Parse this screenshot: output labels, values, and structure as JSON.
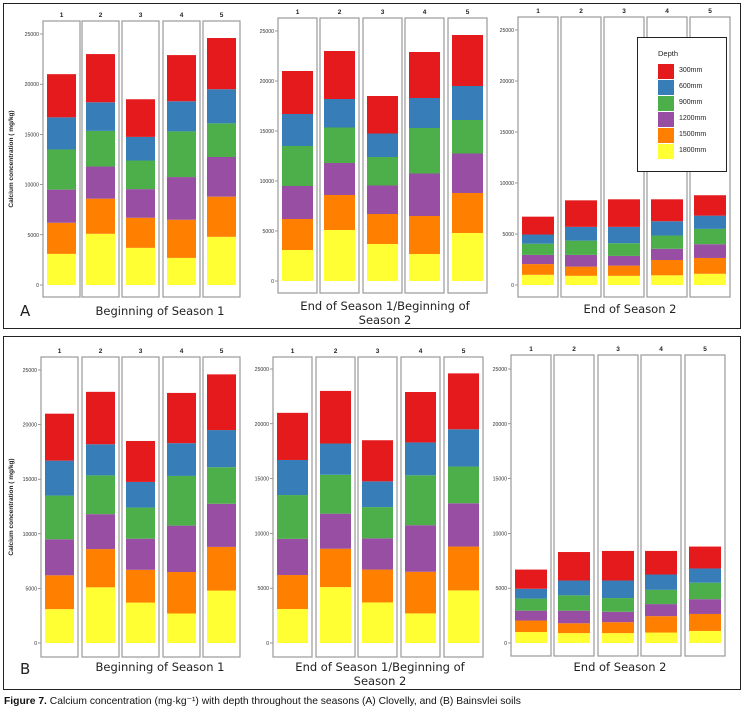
{
  "caption": {
    "prefix": "Figure 7.",
    "text": " Calcium concentration (mg·kg⁻¹) with depth throughout the seasons (A) Clovelly, and (B) Bainsvlei soils"
  },
  "legend": {
    "title": "Depth",
    "items": [
      {
        "label": "300mm",
        "color": "#e41a1c"
      },
      {
        "label": "600mm",
        "color": "#377eb8"
      },
      {
        "label": "900mm",
        "color": "#4daf4a"
      },
      {
        "label": "1200mm",
        "color": "#984ea3"
      },
      {
        "label": "1500mm",
        "color": "#ff7f00"
      },
      {
        "label": "1800mm",
        "color": "#ffff33"
      }
    ]
  },
  "figures": [
    {
      "letter": "A"
    },
    {
      "letter": "B"
    }
  ],
  "chart_data": [
    {
      "type": "bar",
      "stacked": true,
      "figure": "A",
      "soil": "Clovelly",
      "title": "Beginning of Season 1",
      "ylabel": "Calcium concentration ( mg/kg)",
      "xlabel": "",
      "ylim": [
        0,
        26000
      ],
      "yticks": [
        0,
        5000,
        10000,
        15000,
        20000,
        25000
      ],
      "categories": [
        "1",
        "2",
        "3",
        "4",
        "5"
      ],
      "series": [
        {
          "name": "1800mm",
          "values": [
            3100,
            5100,
            3700,
            2700,
            4800
          ]
        },
        {
          "name": "1500mm",
          "values": [
            3100,
            3500,
            3000,
            3800,
            4000
          ]
        },
        {
          "name": "1200mm",
          "values": [
            3300,
            3200,
            2850,
            4250,
            3950
          ]
        },
        {
          "name": "900mm",
          "values": [
            4000,
            3550,
            2850,
            4550,
            3350
          ]
        },
        {
          "name": "600mm",
          "values": [
            3200,
            2850,
            2350,
            3000,
            3400
          ]
        },
        {
          "name": "300mm",
          "values": [
            4300,
            4800,
            3750,
            4600,
            5100
          ]
        }
      ]
    },
    {
      "type": "bar",
      "stacked": true,
      "figure": "A",
      "soil": "Clovelly",
      "title": "End of Season 1/Beginning of Season 2",
      "ylabel": "",
      "xlabel": "",
      "ylim": [
        0,
        26000
      ],
      "yticks": [
        0,
        5000,
        10000,
        15000,
        20000,
        25000
      ],
      "categories": [
        "1",
        "2",
        "3",
        "4",
        "5"
      ],
      "series": [
        {
          "name": "1800mm",
          "values": [
            3100,
            5100,
            3700,
            2700,
            4800
          ]
        },
        {
          "name": "1500mm",
          "values": [
            3100,
            3500,
            3000,
            3800,
            4000
          ]
        },
        {
          "name": "1200mm",
          "values": [
            3300,
            3200,
            2850,
            4250,
            3950
          ]
        },
        {
          "name": "900mm",
          "values": [
            4000,
            3550,
            2850,
            4550,
            3350
          ]
        },
        {
          "name": "600mm",
          "values": [
            3200,
            2850,
            2350,
            3000,
            3400
          ]
        },
        {
          "name": "300mm",
          "values": [
            4300,
            4800,
            3750,
            4600,
            5100
          ]
        }
      ]
    },
    {
      "type": "bar",
      "stacked": true,
      "figure": "A",
      "soil": "Clovelly",
      "title": "End of Season 2",
      "ylabel": "",
      "xlabel": "",
      "ylim": [
        0,
        26000
      ],
      "yticks": [
        0,
        5000,
        10000,
        15000,
        20000,
        25000
      ],
      "categories": [
        "1",
        "2",
        "3",
        "4",
        "5"
      ],
      "legend_position": "top-right",
      "series": [
        {
          "name": "1800mm",
          "values": [
            1000,
            900,
            900,
            950,
            1100
          ]
        },
        {
          "name": "1500mm",
          "values": [
            1050,
            900,
            1000,
            1500,
            1550
          ]
        },
        {
          "name": "1200mm",
          "values": [
            900,
            1150,
            950,
            1100,
            1350
          ]
        },
        {
          "name": "900mm",
          "values": [
            1100,
            1400,
            1250,
            1300,
            1500
          ]
        },
        {
          "name": "600mm",
          "values": [
            900,
            1350,
            1600,
            1400,
            1300
          ]
        },
        {
          "name": "300mm",
          "values": [
            1750,
            2600,
            2700,
            2150,
            2000
          ]
        }
      ]
    },
    {
      "type": "bar",
      "stacked": true,
      "figure": "B",
      "soil": "Bainsvlei",
      "title": "Beginning of Season 1",
      "ylabel": "Calcium concentration ( mg/kg)",
      "xlabel": "",
      "ylim": [
        0,
        26000
      ],
      "yticks": [
        0,
        5000,
        10000,
        15000,
        20000,
        25000
      ],
      "categories": [
        "1",
        "2",
        "3",
        "4",
        "5"
      ],
      "series": [
        {
          "name": "1800mm",
          "values": [
            3100,
            5100,
            3700,
            2700,
            4800
          ]
        },
        {
          "name": "1500mm",
          "values": [
            3100,
            3500,
            3000,
            3800,
            4000
          ]
        },
        {
          "name": "1200mm",
          "values": [
            3300,
            3200,
            2850,
            4250,
            3950
          ]
        },
        {
          "name": "900mm",
          "values": [
            4000,
            3550,
            2850,
            4550,
            3350
          ]
        },
        {
          "name": "600mm",
          "values": [
            3200,
            2850,
            2350,
            3000,
            3400
          ]
        },
        {
          "name": "300mm",
          "values": [
            4300,
            4800,
            3750,
            4600,
            5100
          ]
        }
      ]
    },
    {
      "type": "bar",
      "stacked": true,
      "figure": "B",
      "soil": "Bainsvlei",
      "title": "End of Season 1/Beginning of Season 2",
      "ylabel": "",
      "xlabel": "",
      "ylim": [
        0,
        26000
      ],
      "yticks": [
        0,
        5000,
        10000,
        15000,
        20000,
        25000
      ],
      "categories": [
        "1",
        "2",
        "3",
        "4",
        "5"
      ],
      "series": [
        {
          "name": "1800mm",
          "values": [
            3100,
            5100,
            3700,
            2700,
            4800
          ]
        },
        {
          "name": "1500mm",
          "values": [
            3100,
            3500,
            3000,
            3800,
            4000
          ]
        },
        {
          "name": "1200mm",
          "values": [
            3300,
            3200,
            2850,
            4250,
            3950
          ]
        },
        {
          "name": "900mm",
          "values": [
            4000,
            3550,
            2850,
            4550,
            3350
          ]
        },
        {
          "name": "600mm",
          "values": [
            3200,
            2850,
            2350,
            3000,
            3400
          ]
        },
        {
          "name": "300mm",
          "values": [
            4300,
            4800,
            3750,
            4600,
            5100
          ]
        }
      ]
    },
    {
      "type": "bar",
      "stacked": true,
      "figure": "B",
      "soil": "Bainsvlei",
      "title": "End of Season 2",
      "ylabel": "",
      "xlabel": "",
      "ylim": [
        0,
        26000
      ],
      "yticks": [
        0,
        5000,
        10000,
        15000,
        20000,
        25000
      ],
      "categories": [
        "1",
        "2",
        "3",
        "4",
        "5"
      ],
      "series": [
        {
          "name": "1800mm",
          "values": [
            1000,
            900,
            900,
            950,
            1100
          ]
        },
        {
          "name": "1500mm",
          "values": [
            1050,
            900,
            1000,
            1500,
            1550
          ]
        },
        {
          "name": "1200mm",
          "values": [
            900,
            1150,
            950,
            1100,
            1350
          ]
        },
        {
          "name": "900mm",
          "values": [
            1100,
            1400,
            1250,
            1300,
            1500
          ]
        },
        {
          "name": "600mm",
          "values": [
            900,
            1350,
            1600,
            1400,
            1300
          ]
        },
        {
          "name": "300mm",
          "values": [
            1750,
            2600,
            2700,
            2150,
            2000
          ]
        }
      ]
    }
  ]
}
